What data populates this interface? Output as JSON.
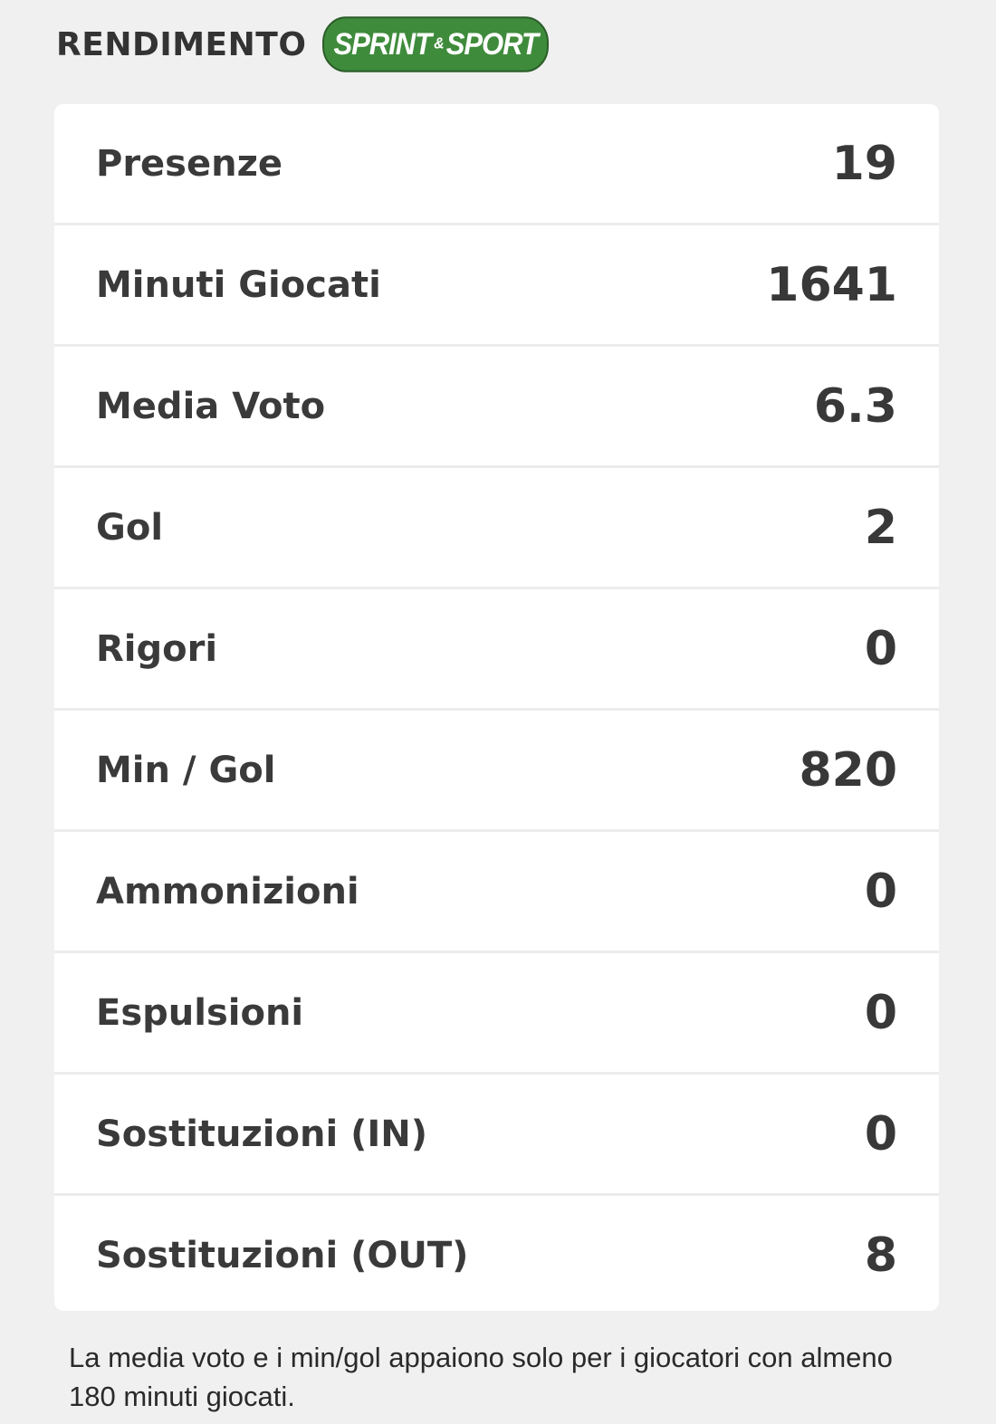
{
  "header": {
    "title": "RENDIMENTO",
    "logo_left": "SPRINT",
    "logo_amp": "&",
    "logo_right": "SPORT",
    "logo_color": "#3f8b3c"
  },
  "stats": [
    {
      "label": "Presenze",
      "value": "19"
    },
    {
      "label": "Minuti Giocati",
      "value": "1641"
    },
    {
      "label": "Media Voto",
      "value": "6.3"
    },
    {
      "label": "Gol",
      "value": "2"
    },
    {
      "label": "Rigori",
      "value": "0"
    },
    {
      "label": "Min / Gol",
      "value": "820"
    },
    {
      "label": "Ammonizioni",
      "value": "0"
    },
    {
      "label": "Espulsioni",
      "value": "0"
    },
    {
      "label": "Sostituzioni (IN)",
      "value": "0"
    },
    {
      "label": "Sostituzioni (OUT)",
      "value": "8"
    }
  ],
  "note": "La media voto e i min/gol appaiono solo per i giocatori con almeno 180 minuti giocati."
}
